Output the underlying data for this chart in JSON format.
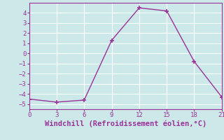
{
  "x": [
    0,
    3,
    6,
    9,
    12,
    15,
    18,
    21
  ],
  "y": [
    -4.5,
    -4.8,
    -4.6,
    1.3,
    4.5,
    4.2,
    -0.8,
    -4.3
  ],
  "line_color": "#993399",
  "marker": "+",
  "marker_color": "#993399",
  "background_color": "#cce8e8",
  "grid_color": "#ffffff",
  "xlabel": "Windchill (Refroidissement éolien,°C)",
  "xlabel_color": "#993399",
  "tick_color": "#993399",
  "spine_color": "#993399",
  "xlim": [
    0,
    21
  ],
  "ylim": [
    -5.5,
    5.0
  ],
  "xticks": [
    0,
    3,
    6,
    9,
    12,
    15,
    18,
    21
  ],
  "yticks": [
    -5,
    -4,
    -3,
    -2,
    -1,
    0,
    1,
    2,
    3,
    4
  ],
  "font_family": "monospace",
  "tick_labelsize": 6.5,
  "xlabel_fontsize": 7.5,
  "linewidth": 1.0,
  "markersize": 5,
  "markeredgewidth": 1.2
}
